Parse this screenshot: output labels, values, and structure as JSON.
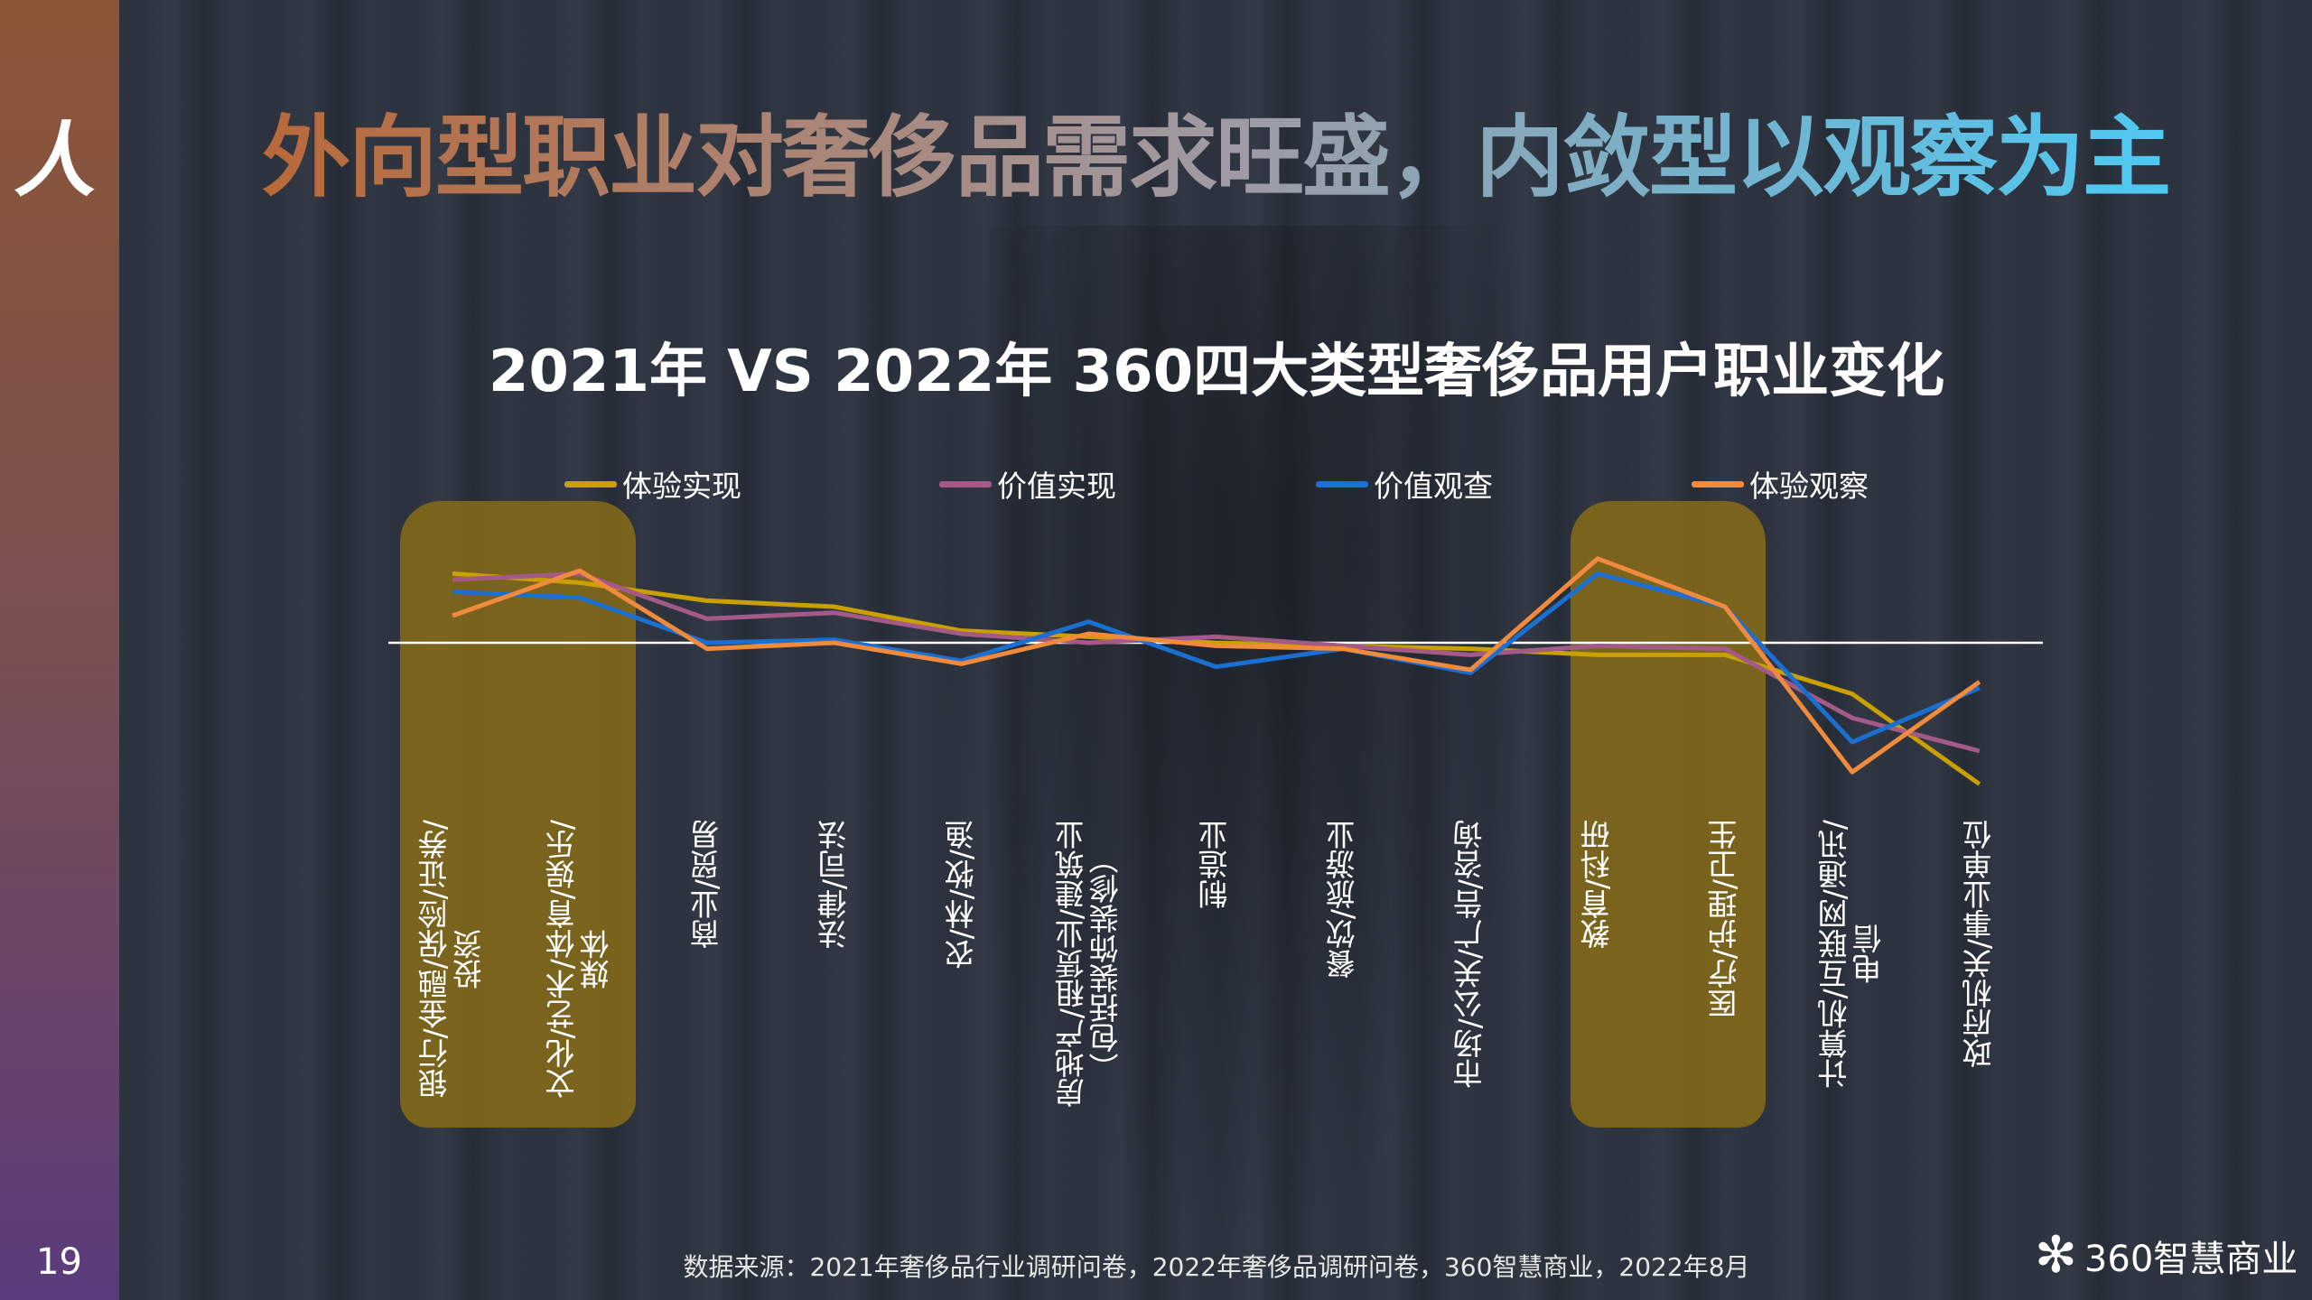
{
  "page": {
    "title": "外向型职业对奢侈品需求旺盛，内敛型以观察为主",
    "page_number": "19",
    "source": "数据来源：2021年奢侈品行业调研问卷，2022年奢侈品调研问卷，360智慧商业，2022年8月",
    "brand": "360智慧商业",
    "logo": "人"
  },
  "chart_data": {
    "type": "line",
    "title": "2021年 VS 2022年 360四大类型奢侈品用户职业变化",
    "xlabel": "",
    "ylabel": "",
    "legend": "top",
    "categories": [
      "银行/金融/保险/证券/\n投资",
      "文化/艺术/体育/娱乐/\n媒体",
      "商业/贸易",
      "法律/司法",
      "农/林/牧/渔",
      "房地产/租赁业/建筑业\n（包括装饰装修）",
      "制造业",
      "餐饮/旅游业",
      "市场/公关/广告/咨询",
      "教育/科研",
      "医疗/护理/卫生",
      "计算机/互联网/通讯/\n电信",
      "政府机关/事业单位"
    ],
    "highlighted_categories": [
      "银行/金融/保险/证券/投资",
      "文化/艺术/体育/娱乐/媒体",
      "教育/科研",
      "医疗/护理/卫生"
    ],
    "baseline": 0,
    "series": [
      {
        "name": "体验实现",
        "color": "#c9a000",
        "values": [
          23,
          20,
          14,
          12,
          4,
          2,
          0,
          -1,
          -2,
          -4,
          -4,
          -17,
          -47
        ]
      },
      {
        "name": "价值实现",
        "color": "#a35a86",
        "values": [
          21,
          23,
          8,
          10,
          3,
          0,
          2,
          -1,
          -4,
          -1,
          -2,
          -25,
          -36
        ]
      },
      {
        "name": "价值观查",
        "color": "#1a6fd0",
        "values": [
          17,
          15,
          0,
          1,
          -6,
          7,
          -8,
          -2,
          -10,
          23,
          12,
          -33,
          -15
        ]
      },
      {
        "name": "体验观察",
        "color": "#f08a3c",
        "values": [
          9,
          24,
          -2,
          0,
          -7,
          3,
          -1,
          -2,
          -9,
          28,
          12,
          -43,
          -13
        ]
      }
    ]
  }
}
